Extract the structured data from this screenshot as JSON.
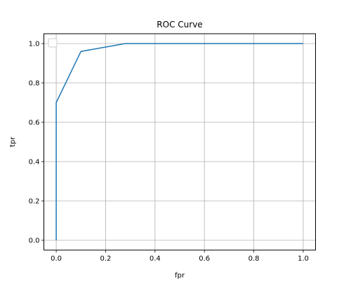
{
  "chart_data": {
    "type": "line",
    "title": "ROC Curve",
    "xlabel": "fpr",
    "ylabel": "tpr",
    "xlim": [
      -0.05,
      1.05
    ],
    "ylim": [
      -0.05,
      1.05
    ],
    "xticks": [
      0.0,
      0.2,
      0.4,
      0.6,
      0.8,
      1.0
    ],
    "yticks": [
      0.0,
      0.2,
      0.4,
      0.6,
      0.8,
      1.0
    ],
    "xtick_labels": [
      "0.0",
      "0.2",
      "0.4",
      "0.6",
      "0.8",
      "1.0"
    ],
    "ytick_labels": [
      "0.0",
      "0.2",
      "0.4",
      "0.6",
      "0.8",
      "1.0"
    ],
    "grid": true,
    "legend": "top-left",
    "series": [
      {
        "color": "#1f77b4",
        "x": [
          0.0,
          0.0,
          0.0,
          0.1,
          0.28,
          1.0
        ],
        "y": [
          0.0,
          0.5,
          0.7,
          0.96,
          1.0,
          1.0
        ]
      }
    ]
  }
}
